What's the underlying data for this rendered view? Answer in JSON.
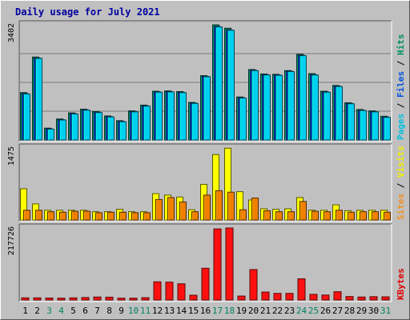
{
  "chart_data": {
    "type": "bar",
    "title": "Daily usage for July 2021",
    "categories": [
      "1",
      "2",
      "3",
      "4",
      "5",
      "6",
      "7",
      "8",
      "9",
      "10",
      "11",
      "12",
      "13",
      "14",
      "15",
      "16",
      "17",
      "18",
      "19",
      "20",
      "21",
      "22",
      "23",
      "24",
      "25",
      "26",
      "27",
      "28",
      "29",
      "30",
      "31"
    ],
    "weekend_days": [
      "3",
      "4",
      "10",
      "11",
      "17",
      "18",
      "24",
      "25",
      "31"
    ],
    "panels": [
      {
        "name": "hits-files-pages",
        "ymax_label": "3402",
        "ymax": 3402,
        "side_label_parts": [
          "Pages",
          " / ",
          "Files",
          " / ",
          "Hits"
        ],
        "side_label_colors": [
          "#00c0e0",
          "#000000",
          "#0050e0",
          "#000000",
          "#009060"
        ],
        "series": [
          {
            "name": "Hits",
            "color": "#008060",
            "values": [
              1400,
              2450,
              350,
              620,
              800,
              910,
              840,
              710,
              570,
              860,
              1030,
              1440,
              1450,
              1430,
              1110,
              1900,
              3400,
              3300,
              1270,
              2080,
              1950,
              1940,
              2050,
              2530,
              1960,
              1440,
              1610,
              1100,
              900,
              860,
              700
            ]
          },
          {
            "name": "Files",
            "color": "#0040c0",
            "values": [
              1370,
              2420,
              330,
              600,
              780,
              890,
              820,
              690,
              550,
              840,
              1010,
              1420,
              1430,
              1410,
              1090,
              1880,
              3350,
              3250,
              1250,
              2060,
              1930,
              1920,
              2030,
              2500,
              1930,
              1420,
              1590,
              1080,
              880,
              840,
              680
            ]
          },
          {
            "name": "Pages",
            "color": "#00d0f0",
            "values": [
              1360,
              2410,
              320,
              590,
              770,
              880,
              810,
              680,
              540,
              830,
              1000,
              1410,
              1420,
              1400,
              1080,
              1870,
              3340,
              3240,
              1240,
              2050,
              1920,
              1910,
              2020,
              2490,
              1920,
              1410,
              1580,
              1070,
              870,
              830,
              670
            ]
          }
        ]
      },
      {
        "name": "visits-sites",
        "ymax_label": "1475",
        "ymax": 1475,
        "side_label_parts": [
          "Sites",
          " / ",
          "Visits"
        ],
        "side_label_colors": [
          "#f09020",
          "#000000",
          "#f0f000"
        ],
        "series": [
          {
            "name": "Visits",
            "color": "#ffff00",
            "values": [
              640,
              330,
              200,
              200,
              200,
              200,
              170,
              170,
              220,
              170,
              170,
              540,
              510,
              470,
              210,
              730,
              1340,
              1470,
              580,
              410,
              230,
              220,
              230,
              460,
              200,
              200,
              310,
              190,
              200,
              200,
              200
            ]
          },
          {
            "name": "Sites",
            "color": "#f08000",
            "values": [
              200,
              200,
              170,
              160,
              180,
              180,
              150,
              160,
              160,
              150,
              150,
              420,
              460,
              370,
              170,
              510,
              600,
              570,
              210,
              450,
              190,
              170,
              170,
              380,
              180,
              170,
              200,
              160,
              170,
              170,
              160
            ]
          }
        ]
      },
      {
        "name": "kbytes",
        "ymax_label": "217726",
        "ymax": 217726,
        "side_label_parts": [
          "KBytes"
        ],
        "side_label_colors": [
          "#e00000"
        ],
        "series": [
          {
            "name": "KBytes",
            "color": "#ff1010",
            "values": [
              6500,
              6500,
              6000,
              5500,
              6500,
              7500,
              9000,
              8500,
              5500,
              5500,
              7000,
              55000,
              54000,
              49000,
              14500,
              96000,
              215000,
              217726,
              12000,
              92000,
              24000,
              20000,
              20000,
              64000,
              17000,
              15000,
              25000,
              10500,
              9000,
              10000,
              9500
            ]
          }
        ]
      }
    ]
  }
}
